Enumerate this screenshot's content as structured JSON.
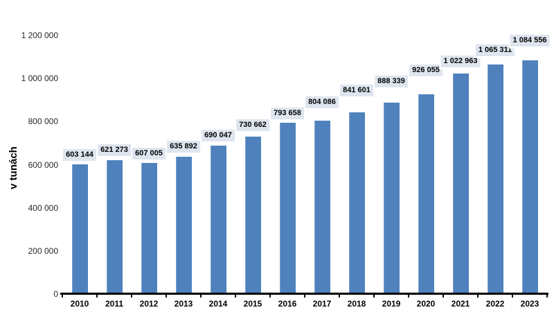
{
  "chart_data": {
    "type": "bar",
    "ylabel": "v tunách",
    "categories": [
      "2010",
      "2011",
      "2012",
      "2013",
      "2014",
      "2015",
      "2016",
      "2017",
      "2018",
      "2019",
      "2020",
      "2021",
      "2022",
      "2023"
    ],
    "values": [
      603144,
      621273,
      607005,
      635892,
      690047,
      730662,
      793658,
      804086,
      841601,
      888339,
      926055,
      1022963,
      1065311,
      1084556
    ],
    "value_labels": [
      "603 144",
      "621 273",
      "607 005",
      "635 892",
      "690 047",
      "730 662",
      "793 658",
      "804 086",
      "841 601",
      "888 339",
      "926 055",
      "1 022 963",
      "1 065 311",
      "1 084 556"
    ],
    "ytick_values": [
      0,
      200000,
      400000,
      600000,
      800000,
      1000000,
      1200000
    ],
    "ytick_labels": [
      "0",
      "200 000",
      "400 000",
      "600 000",
      "800 000",
      "1 000 000",
      "1 200 000"
    ],
    "ylim": [
      0,
      1200000
    ],
    "grid": false,
    "legend": "none",
    "colors": {
      "bar": "#4f81bd",
      "bar_edge_highlight": "#7da1ce",
      "data_label_bg": "#dee5ef",
      "data_label_text": "#000000",
      "axis_line": "#000000",
      "tick_label": "#262626",
      "background": "#ffffff"
    }
  }
}
